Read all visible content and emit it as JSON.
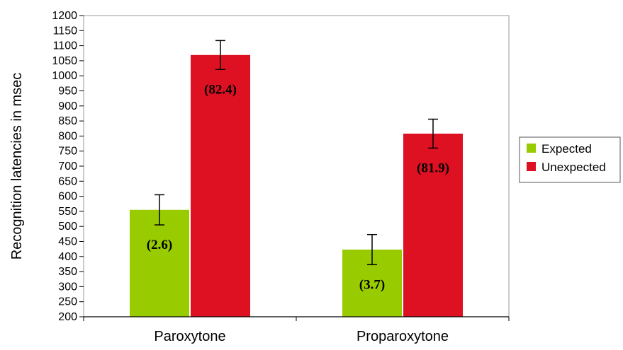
{
  "chart_data": {
    "type": "bar",
    "title": "",
    "xlabel": "",
    "ylabel": "Recognition latencies in msec",
    "ylim": [
      200,
      1200
    ],
    "ytick_step": 50,
    "grid": false,
    "legend_position": "right",
    "categories": [
      "Paroxytone",
      "Proparoxytone"
    ],
    "series": [
      {
        "name": "Expected",
        "color": "#99cc00",
        "values": [
          555,
          423
        ],
        "errors": [
          50,
          50
        ],
        "labels": [
          "(2.6)",
          "(3.7)"
        ]
      },
      {
        "name": "Unexpected",
        "color": "#dd1122",
        "values": [
          1069,
          808
        ],
        "errors": [
          48,
          48
        ],
        "labels": [
          "(82.4)",
          "(81.9)"
        ]
      }
    ]
  }
}
